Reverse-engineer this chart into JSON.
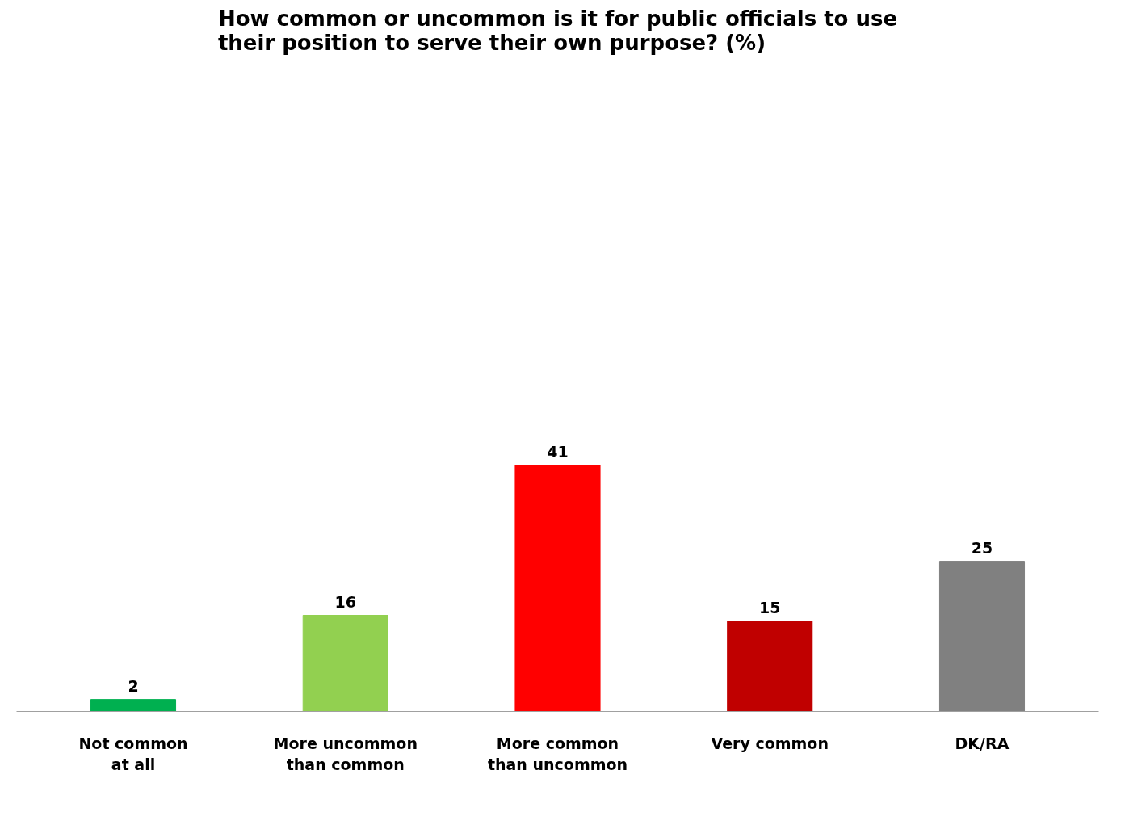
{
  "chart_data": {
    "type": "bar",
    "title": "How common or uncommon is it for public officials to use their position to serve their own purpose? (%)",
    "categories": [
      "Not common\nat all",
      "More uncommon\nthan common",
      "More common\nthan uncommon",
      "Very common",
      "DK/RA"
    ],
    "values": [
      2,
      16,
      41,
      15,
      25
    ],
    "colors": [
      "#00b050",
      "#92d050",
      "#ff0000",
      "#c00000",
      "#808080"
    ],
    "data_labels": true
  }
}
